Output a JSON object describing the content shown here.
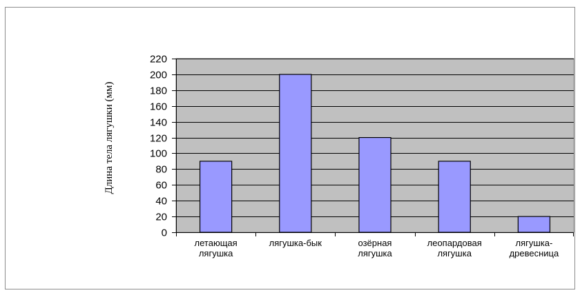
{
  "chart_data": {
    "type": "bar",
    "categories": [
      [
        "летающая",
        "лягушка"
      ],
      [
        "лягушка-бык"
      ],
      [
        "озёрная",
        "лягушка"
      ],
      [
        "леопардовая",
        "лягушка"
      ],
      [
        "лягушка-",
        "древесница"
      ]
    ],
    "values": [
      90,
      200,
      120,
      90,
      20
    ],
    "title": "",
    "xlabel": "",
    "ylabel": "Длина тела лягушки (мм)",
    "ylim": [
      0,
      220
    ],
    "ytick_step": 20,
    "grid": true,
    "plot_background": "#c0c0c0",
    "bar_color": "#9999ff",
    "bar_edge": "#000000",
    "grid_color": "#000000"
  }
}
